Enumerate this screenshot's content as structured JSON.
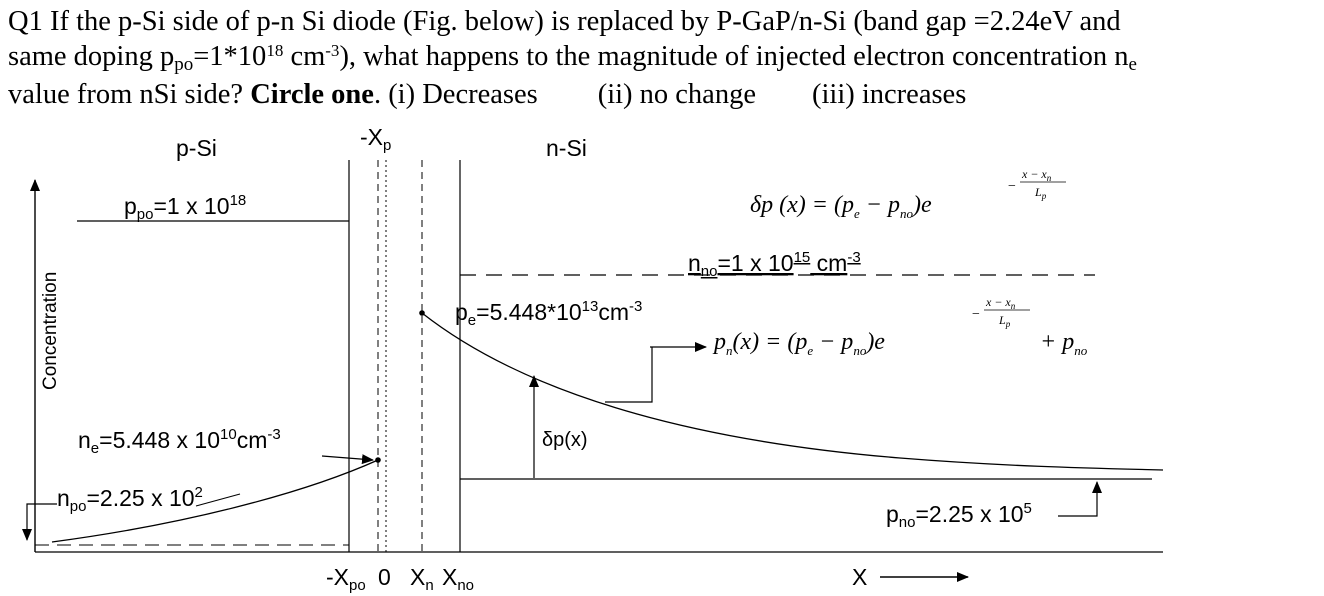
{
  "question": {
    "line1_text": "Q1 If the p-Si side of p-n Si diode (Fig. below) is replaced by P-GaP/n-Si (band gap =2.24eV and",
    "line2_pre": "same doping p",
    "line2_sub": "po",
    "line2_mid": "=1*10",
    "line2_sup1": "18",
    "line2_cm": " cm",
    "line2_sup2": "-3",
    "line2_post": "), what happens to the magnitude of injected electron concentration n",
    "line2_sub2": "e",
    "line3_pre": "value from nSi side? ",
    "line3_bold": "Circle one",
    "line3_post": ". (i) Decreases",
    "option2": "(ii) no change",
    "option3": "(iii) increases"
  },
  "figure": {
    "p_region": "p-Si",
    "n_region": "n-Si",
    "neg_xp": "-X",
    "neg_xp_sub": "p",
    "y_axis": "Concentration",
    "ppo": {
      "base": "p",
      "sub": "po",
      "text": "=1 x 10",
      "sup": "18"
    },
    "nno": {
      "base": "n",
      "sub": "no",
      "text": "=1 x 10",
      "sup": "15",
      "unit": " cm",
      "unit_sup": "-3"
    },
    "pe": {
      "base": "p",
      "sub": "e",
      "text": "=5.448*10",
      "sup": "13",
      "unit": "cm",
      "unit_sup": "-3"
    },
    "ne": {
      "base": "n",
      "sub": "e",
      "text": "=5.448 x 10",
      "sup": "10",
      "unit": "cm",
      "unit_sup": "-3"
    },
    "npo": {
      "base": "n",
      "sub": "po",
      "text": "=2.25 x 10",
      "sup": "2"
    },
    "pno": {
      "base": "p",
      "sub": "no",
      "text": "=2.25 x 10",
      "sup": "5"
    },
    "delta_label": "δp(x)",
    "eq1": {
      "lhs": "δp (x) = (p",
      "sub_e": "e",
      "minus": " − p",
      "sub_no": "no",
      "rhs": ")e"
    },
    "eq2": {
      "lhs": "p",
      "lhs_sub": "n",
      "lhs2": "(x) = (p",
      "sub_e": "e",
      "minus": " − p",
      "sub_no": "no",
      "rhs": ")e",
      "plus": "+ p",
      "plus_sub": "no"
    },
    "exponent": {
      "minus": "−",
      "numerator": "x − x",
      "num_sub": "n",
      "denominator": "L",
      "den_sub": "p"
    },
    "x_ticks": {
      "neg_xpo": "-X",
      "neg_xpo_sub": "po",
      "zero": "0",
      "xn": "X",
      "xn_sub": "n",
      "xno": "X",
      "xno_sub": "no"
    },
    "x_axis": "X"
  }
}
